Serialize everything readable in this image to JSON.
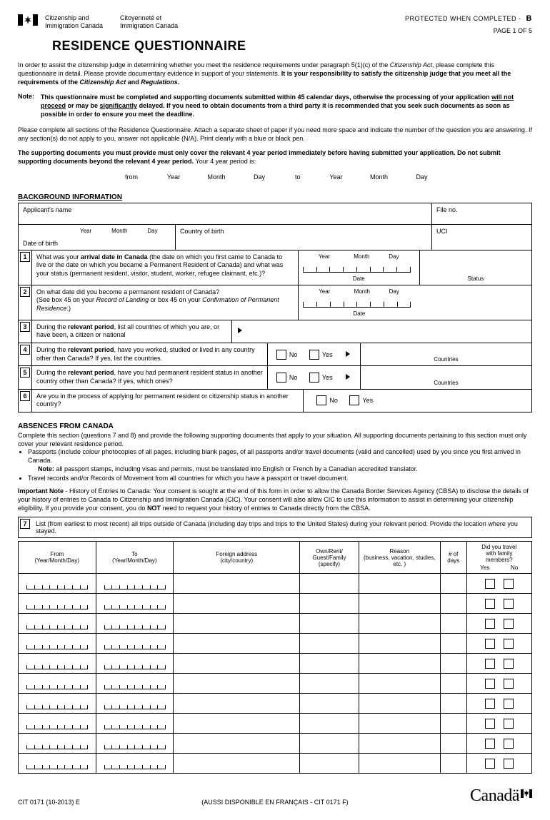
{
  "header": {
    "agency_en_1": "Citizenship and",
    "agency_en_2": "Immigration Canada",
    "agency_fr_1": "Citoyenneté et",
    "agency_fr_2": "Immigration Canada",
    "protected": "PROTECTED   WHEN COMPLETED -",
    "protected_b": "B",
    "page": "PAGE 1 OF 5",
    "title": "RESIDENCE QUESTIONNAIRE"
  },
  "intro": "In order to assist the citizenship judge in determining whether you meet the residence requirements under paragraph 5(1)(c) of the <i>Citizenship Act</i>, please complete this questionnaire in detail. Please provide documentary evidence in support of your statements. <b>It is your responsibility to satisfy the citizenship judge that you meet all the requirements of the <i>Citizenship Act</i> and <i>Regulations</i>.</b>",
  "note": {
    "label": "Note:",
    "body": "<b>This questionnaire must be completed and supporting documents submitted within 45 calendar days, otherwise the processing of your application <span class='underline'>will not proceed</span> or may be <span class='underline'>significantly</span> delayed. If you need to obtain documents from a third party it is recommended that you seek such documents as soon as possible in order to ensure you meet the deadline.</b>"
  },
  "sections_para": "Please complete all sections of the Residence Questionnaire. Attach a separate sheet of paper if you need more space and indicate the number of the question you are answering. If any section(s) do not apply to you, answer not applicable (N/A). Print clearly with a blue or black pen.",
  "supporting": "The supporting documents you must provide must only cover the relevant 4 year period immediately before having submitted your application. Do not submit supporting documents beyond the relevant 4 year period. <span style='font-weight:normal'>Your 4 year period is:</span>",
  "period": {
    "from": "from",
    "to": "to",
    "year": "Year",
    "month": "Month",
    "day": "Day"
  },
  "bg": {
    "heading": "BACKGROUND INFORMATION",
    "applicant_name": "Applicant's name",
    "file_no": "File no.",
    "dob": "Date of birth",
    "country_birth": "Country of birth",
    "uci": "UCI"
  },
  "q": {
    "q1": "What was your <b>arrival date in Canada</b> (the date on which you first came to Canada to live or the date on which you became a Permanent Resident of Canada) and what was your status (permanent resident, visitor, student, worker, refugee claimant, etc.)?",
    "q1_status": "Status",
    "q2": "On what date did you become a permanent resident of Canada?<br>(See box 45 on your <i>Record of Landing</i> or box 45 on your <i>Confirmation of Permanent Residence</i>.)",
    "q3": "During the <b>relevant period</b>, list all countries of which you are, or have been, a citizen or national",
    "q4": "During the <b>relevant period</b>, have you worked, studied or lived in any country other than Canada? If yes, list the countries.",
    "q4_countries": "Countries",
    "q5": "During the <b>relevant period</b>, have you had permanent resident status in another country other than Canada? If yes, which ones?",
    "q5_countries": "Countries",
    "q6": "Are you in the process of applying for permanent resident or citizenship status in another country?",
    "no": "No",
    "yes": "Yes",
    "date": "Date"
  },
  "absences": {
    "heading": "ABSENCES FROM CANADA",
    "intro": "Complete this section (questions 7 and 8) and provide the following supporting documents that apply to your situation. All supporting documents pertaining to this section must only cover your relevant residence period.",
    "bullet1": "Passports (include colour photocopies of all pages, including blank pages, of all passports and/or travel documents (valid and cancelled) used by you since you first arrived in Canada.",
    "bullet1_note": "<b>Note:</b> all passport stamps, including visas and permits, must be translated into English or French by a Canadian accredited translator.",
    "bullet2": "Travel records and/or Records of Movement from all countries for which you have a passport or travel document.",
    "important": "<span class='imp-label'>Important Note</span> - History of Entries to Canada: Your consent is sought at the end of this form in order to allow the Canada Border Services Agency (CBSA) to disclose the details of your history of entries to Canada to Citizenship and Immigration Canada (CIC). Your consent will also allow CIC to use this information to assist in determining your citizenship eligibility. If you provide your consent, you do <b>NOT</b> need to request your history of entries to Canada directly from the CBSA."
  },
  "q7": {
    "text": "List (from earliest to most recent) all trips outside of Canada (including day trips and trips to the United States) during your relevant period. Provide the location where you stayed.",
    "col_from": "From<br>(Year/Month/Day)",
    "col_to": "To<br>(Year/Month/Day)",
    "col_addr": "Foreign address<br>(city/country)",
    "col_own": "Own/Rent/<br>Guest/Family<br>(specify)",
    "col_reason": "Reason<br>(business, vacation, studies, etc. )",
    "col_days": "# of<br>days",
    "col_fam": "Did you travel<br>with family<br>members?",
    "yes": "Yes",
    "no": "No",
    "row_count": 10
  },
  "footer": {
    "form_no": "CIT 0171 (10-2013) E",
    "francais": "(AUSSI DISPONIBLE EN FRANÇAIS - CIT 0171 F)",
    "wordmark": "Canadä"
  },
  "colors": {
    "text": "#000000",
    "border": "#000000",
    "bg": "#ffffff"
  }
}
